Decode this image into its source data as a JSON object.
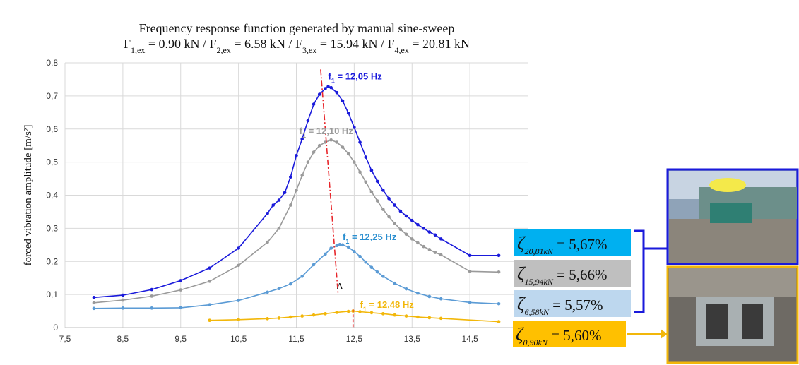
{
  "chart_data": {
    "type": "line",
    "title": "Frequency response function generated by manual sine-sweep",
    "subtitle": {
      "parts": [
        {
          "t": "F"
        },
        {
          "t": "1,ex",
          "sub": true
        },
        {
          "t": " = 0.90 kN / F"
        },
        {
          "t": "2,ex",
          "sub": true
        },
        {
          "t": " = 6.58 kN / F"
        },
        {
          "t": "3,ex",
          "sub": true
        },
        {
          "t": " = 15.94 kN / F"
        },
        {
          "t": "4,ex",
          "sub": true
        },
        {
          "t": " = 20.81 kN"
        }
      ]
    },
    "ylabel": "forced vibration amplitude [m/s²]",
    "xlim": [
      7.5,
      15.5
    ],
    "ylim": [
      0,
      0.8
    ],
    "xticks": [
      "7,5",
      "8,5",
      "9,5",
      "10,5",
      "11,5",
      "12,5",
      "13,5",
      "14,5"
    ],
    "xtick_values": [
      7.5,
      8.5,
      9.5,
      10.5,
      11.5,
      12.5,
      13.5,
      14.5
    ],
    "yticks": [
      "0",
      "0,1",
      "0,2",
      "0,3",
      "0,4",
      "0,5",
      "0,6",
      "0,7",
      "0,8"
    ],
    "ytick_values": [
      0,
      0.1,
      0.2,
      0.3,
      0.4,
      0.5,
      0.6,
      0.7,
      0.8
    ],
    "grid": true,
    "series": [
      {
        "color": "#1a1adb",
        "points": [
          [
            8,
            0.091
          ],
          [
            8.5,
            0.098
          ],
          [
            9,
            0.115
          ],
          [
            9.5,
            0.142
          ],
          [
            10,
            0.18
          ],
          [
            10.5,
            0.24
          ],
          [
            11,
            0.345
          ],
          [
            11.1,
            0.37
          ],
          [
            11.2,
            0.385
          ],
          [
            11.3,
            0.408
          ],
          [
            11.4,
            0.455
          ],
          [
            11.5,
            0.52
          ],
          [
            11.6,
            0.57
          ],
          [
            11.7,
            0.625
          ],
          [
            11.8,
            0.675
          ],
          [
            11.9,
            0.705
          ],
          [
            12.0,
            0.722
          ],
          [
            12.05,
            0.728
          ],
          [
            12.1,
            0.725
          ],
          [
            12.2,
            0.71
          ],
          [
            12.3,
            0.685
          ],
          [
            12.4,
            0.648
          ],
          [
            12.5,
            0.605
          ],
          [
            12.6,
            0.56
          ],
          [
            12.7,
            0.515
          ],
          [
            12.8,
            0.475
          ],
          [
            12.9,
            0.442
          ],
          [
            13.0,
            0.415
          ],
          [
            13.1,
            0.39
          ],
          [
            13.2,
            0.37
          ],
          [
            13.3,
            0.352
          ],
          [
            13.4,
            0.337
          ],
          [
            13.5,
            0.324
          ],
          [
            13.6,
            0.311
          ],
          [
            13.7,
            0.3
          ],
          [
            13.8,
            0.289
          ],
          [
            13.9,
            0.28
          ],
          [
            14.0,
            0.268
          ],
          [
            14.5,
            0.218
          ],
          [
            15.0,
            0.218
          ]
        ]
      },
      {
        "color": "#9a9a9a",
        "points": [
          [
            8,
            0.075
          ],
          [
            8.5,
            0.083
          ],
          [
            9,
            0.095
          ],
          [
            9.5,
            0.114
          ],
          [
            10,
            0.14
          ],
          [
            10.5,
            0.188
          ],
          [
            11,
            0.258
          ],
          [
            11.2,
            0.3
          ],
          [
            11.4,
            0.37
          ],
          [
            11.5,
            0.415
          ],
          [
            11.6,
            0.46
          ],
          [
            11.7,
            0.5
          ],
          [
            11.8,
            0.53
          ],
          [
            11.9,
            0.55
          ],
          [
            12.0,
            0.56
          ],
          [
            12.1,
            0.567
          ],
          [
            12.2,
            0.56
          ],
          [
            12.3,
            0.545
          ],
          [
            12.4,
            0.525
          ],
          [
            12.5,
            0.5
          ],
          [
            12.6,
            0.47
          ],
          [
            12.7,
            0.44
          ],
          [
            12.8,
            0.41
          ],
          [
            12.9,
            0.383
          ],
          [
            13.0,
            0.357
          ],
          [
            13.1,
            0.335
          ],
          [
            13.2,
            0.315
          ],
          [
            13.3,
            0.297
          ],
          [
            13.4,
            0.282
          ],
          [
            13.5,
            0.268
          ],
          [
            13.6,
            0.256
          ],
          [
            13.7,
            0.245
          ],
          [
            13.8,
            0.236
          ],
          [
            13.9,
            0.227
          ],
          [
            14.0,
            0.22
          ],
          [
            14.5,
            0.17
          ],
          [
            15.0,
            0.168
          ]
        ]
      },
      {
        "color": "#5b9bd5",
        "points": [
          [
            8,
            0.058
          ],
          [
            8.5,
            0.059
          ],
          [
            9,
            0.059
          ],
          [
            9.5,
            0.06
          ],
          [
            10,
            0.069
          ],
          [
            10.5,
            0.082
          ],
          [
            11,
            0.107
          ],
          [
            11.2,
            0.118
          ],
          [
            11.4,
            0.132
          ],
          [
            11.6,
            0.155
          ],
          [
            11.8,
            0.19
          ],
          [
            12.0,
            0.222
          ],
          [
            12.1,
            0.24
          ],
          [
            12.2,
            0.248
          ],
          [
            12.25,
            0.251
          ],
          [
            12.3,
            0.25
          ],
          [
            12.4,
            0.243
          ],
          [
            12.5,
            0.23
          ],
          [
            12.6,
            0.215
          ],
          [
            12.7,
            0.198
          ],
          [
            12.8,
            0.182
          ],
          [
            12.9,
            0.168
          ],
          [
            13.0,
            0.155
          ],
          [
            13.2,
            0.134
          ],
          [
            13.4,
            0.117
          ],
          [
            13.6,
            0.104
          ],
          [
            13.8,
            0.094
          ],
          [
            14.0,
            0.087
          ],
          [
            14.5,
            0.076
          ],
          [
            15.0,
            0.072
          ]
        ]
      },
      {
        "color": "#f2b70a",
        "points": [
          [
            10,
            0.022
          ],
          [
            10.5,
            0.024
          ],
          [
            11,
            0.027
          ],
          [
            11.2,
            0.029
          ],
          [
            11.4,
            0.032
          ],
          [
            11.6,
            0.035
          ],
          [
            11.8,
            0.038
          ],
          [
            12.0,
            0.042
          ],
          [
            12.2,
            0.046
          ],
          [
            12.4,
            0.049
          ],
          [
            12.48,
            0.05
          ],
          [
            12.6,
            0.048
          ],
          [
            12.8,
            0.045
          ],
          [
            13.0,
            0.042
          ],
          [
            13.2,
            0.038
          ],
          [
            13.4,
            0.035
          ],
          [
            13.6,
            0.032
          ],
          [
            13.8,
            0.03
          ],
          [
            14.0,
            0.028
          ],
          [
            15.0,
            0.018
          ]
        ]
      }
    ],
    "annotations": [
      {
        "text": "f1 = 12,05 Hz",
        "main": "f",
        "sub": "1",
        "rest": " = 12,05 Hz",
        "color": "#1a1adb",
        "x": 12.05,
        "y": 0.75
      },
      {
        "text": "f1 = 12,10 Hz",
        "main": "f",
        "sub": "1",
        "rest": " = 12,10 Hz",
        "color": "#9a9a9a",
        "x": 11.55,
        "y": 0.585
      },
      {
        "text": "f1 = 12,25 Hz",
        "main": "f",
        "sub": "1",
        "rest": " = 12,25 Hz",
        "color": "#2b8fd0",
        "x": 12.3,
        "y": 0.265
      },
      {
        "text": "f1 = 12,48 Hz",
        "main": "f",
        "sub": "1",
        "rest": " = 12,48 Hz",
        "color": "#f2b70a",
        "x": 12.6,
        "y": 0.06
      }
    ],
    "delta_label": "Δ",
    "damping": [
      {
        "label": "ζ",
        "sub": "20,81kN",
        "value": "= 5,67%",
        "bg": "#00b0f0"
      },
      {
        "label": "ζ",
        "sub": "15,94kN",
        "value": "= 5,66%",
        "bg": "#bfbfbf"
      },
      {
        "label": "ζ",
        "sub": "6,58kN",
        "value": "= 5,57%",
        "bg": "#bdd7ee"
      },
      {
        "label": "ζ",
        "sub": "0,90kN",
        "value": "= 5,60%",
        "bg": "#ffc000"
      }
    ],
    "photo_frames": [
      {
        "name": "field-photo-large-load",
        "border": "#1a1adb"
      },
      {
        "name": "field-photo-small-load",
        "border": "#f2b70a"
      }
    ]
  }
}
